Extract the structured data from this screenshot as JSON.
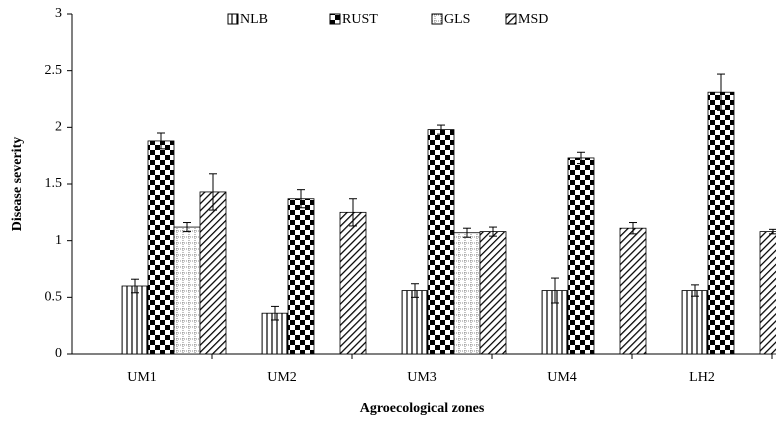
{
  "chart_data": {
    "type": "bar",
    "x_label": "Agroecological zones",
    "y_label": "Disease severity",
    "categories": [
      "UM1",
      "UM2",
      "UM3",
      "UM4",
      "LH2"
    ],
    "series": [
      {
        "name": "NLB",
        "color": "#000000",
        "values": [
          0.6,
          0.36,
          0.56,
          0.56,
          0.56
        ],
        "errors": [
          0.06,
          0.06,
          0.06,
          0.11,
          0.05
        ]
      },
      {
        "name": "RUST",
        "color": "#000000",
        "values": [
          1.88,
          1.37,
          1.98,
          1.73,
          2.31
        ],
        "errors": [
          0.07,
          0.08,
          0.04,
          0.05,
          0.16
        ]
      },
      {
        "name": "GLS",
        "color": "#000000",
        "values": [
          1.12,
          null,
          1.07,
          null,
          null
        ],
        "errors": [
          0.04,
          null,
          0.04,
          null,
          null
        ]
      },
      {
        "name": "MSD",
        "color": "#000000",
        "values": [
          1.43,
          1.25,
          1.08,
          1.11,
          1.08
        ],
        "errors": [
          0.16,
          0.12,
          0.04,
          0.05,
          0.02
        ]
      }
    ],
    "ylim": [
      0,
      3
    ],
    "yticks": [
      0,
      0.5,
      1,
      1.5,
      2,
      2.5,
      3
    ],
    "grid": false,
    "legend": "top"
  }
}
